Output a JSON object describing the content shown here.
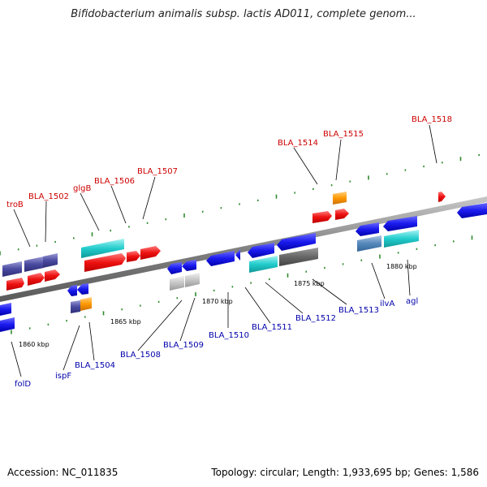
{
  "title": "Bifidobacterium animalis subsp. lactis AD011, complete genom...",
  "footer": {
    "accession": "Accession: NC_011835",
    "topology": "Topology: circular; Length: 1,933,695 bp; Genes: 1,586"
  },
  "colors": {
    "backbone": "#8a8a8a",
    "tick": "#2e8b2e",
    "forward_label": "#cc0000",
    "reverse_label": "#0000aa"
  },
  "scale": {
    "unit": "kbp",
    "marks": [
      {
        "kbp": 1860,
        "label": "1860 kbp"
      },
      {
        "kbp": 1865,
        "label": "1865 kbp"
      },
      {
        "kbp": 1870,
        "label": "1870 kbp"
      },
      {
        "kbp": 1875,
        "label": "1875 kbp"
      },
      {
        "kbp": 1880,
        "label": "1880 kbp"
      }
    ]
  },
  "genes_forward": [
    {
      "id": "troB",
      "label": "troB"
    },
    {
      "id": "BLA_1502",
      "label": "BLA_1502"
    },
    {
      "id": "glgB",
      "label": "glgB"
    },
    {
      "id": "BLA_1506",
      "label": "BLA_1506"
    },
    {
      "id": "BLA_1507",
      "label": "BLA_1507"
    },
    {
      "id": "BLA_1514",
      "label": "BLA_1514"
    },
    {
      "id": "BLA_1515",
      "label": "BLA_1515"
    },
    {
      "id": "BLA_1518",
      "label": "BLA_1518"
    }
  ],
  "genes_reverse": [
    {
      "id": "folD",
      "label": "folD"
    },
    {
      "id": "ispF",
      "label": "ispF"
    },
    {
      "id": "BLA_1504",
      "label": "BLA_1504"
    },
    {
      "id": "BLA_1508",
      "label": "BLA_1508"
    },
    {
      "id": "BLA_1509",
      "label": "BLA_1509"
    },
    {
      "id": "BLA_1510",
      "label": "BLA_1510"
    },
    {
      "id": "BLA_1511",
      "label": "BLA_1511"
    },
    {
      "id": "BLA_1512",
      "label": "BLA_1512"
    },
    {
      "id": "BLA_1513",
      "label": "BLA_1513"
    },
    {
      "id": "ilvA",
      "label": "ilvA"
    },
    {
      "id": "agl",
      "label": "agl"
    }
  ]
}
